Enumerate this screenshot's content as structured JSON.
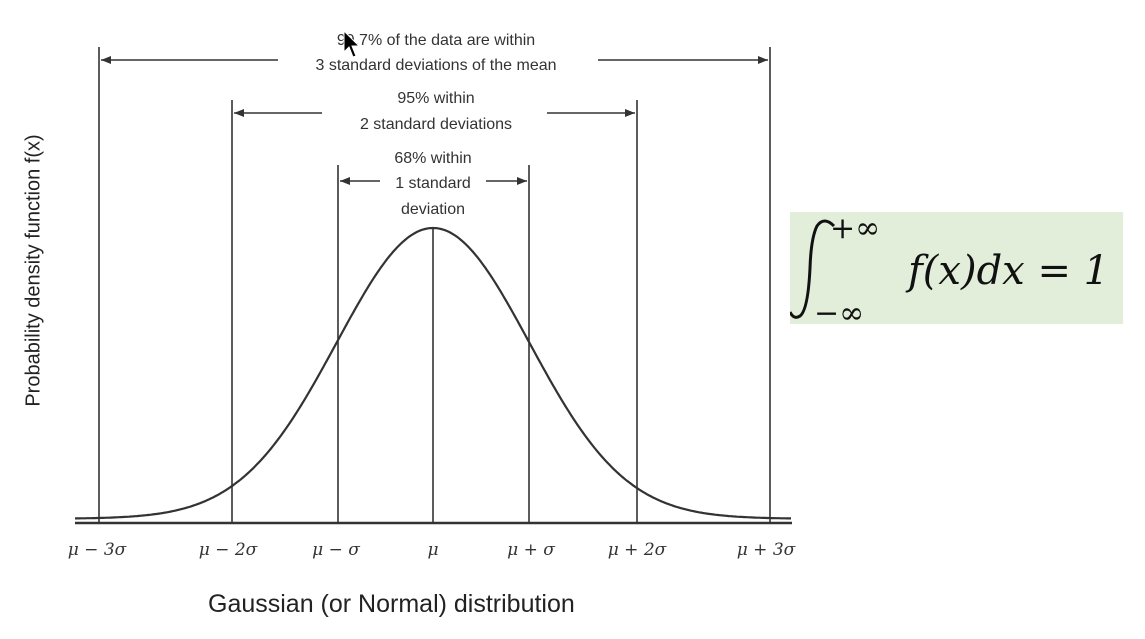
{
  "diagram": {
    "y_axis_label": "Probability density function f(x)",
    "caption": "Gaussian (or Normal) distribution",
    "ticks": [
      "μ − 3σ",
      "μ − 2σ",
      "μ − σ",
      "μ",
      "μ + σ",
      "μ + 2σ",
      "μ + 3σ"
    ],
    "bands": [
      {
        "line1": "99.7% of the data are within",
        "line2": "3 standard deviations of the mean"
      },
      {
        "line1": "95% within",
        "line2": "2 standard deviations"
      },
      {
        "line1": "68% within",
        "line2": "1 standard",
        "line3": "deviation"
      }
    ]
  },
  "formula": {
    "upper_limit": "+∞",
    "lower_limit": "−∞",
    "integrand": "f(x)dx = 1"
  },
  "colors": {
    "formula_background": "#e2eed9",
    "curve": "#333333"
  }
}
